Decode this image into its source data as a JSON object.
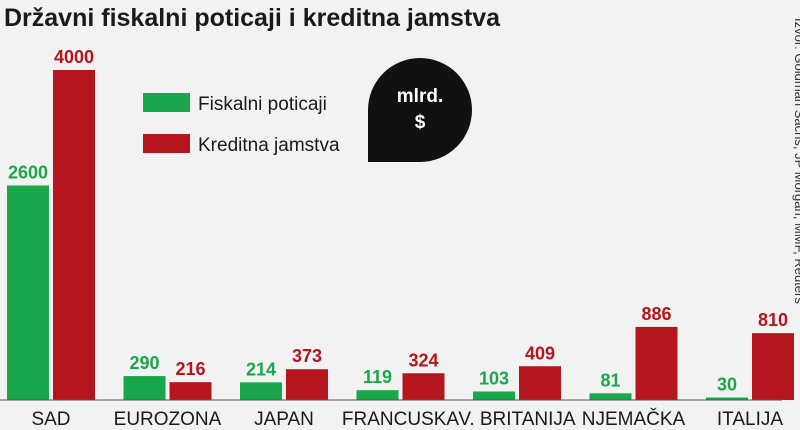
{
  "chart_data": {
    "type": "bar",
    "title": "Državni fiskalni poticaji i kreditna jamstva",
    "unit_line1": "mlrd.",
    "unit_line2": "$",
    "source": "Izvor: Goldman Sachs, JP Morgan, MMF, Reuters",
    "categories": [
      "SAD",
      "EUROZONA",
      "JAPAN",
      "FRANCUSKA",
      "V. BRITANIJA",
      "NJEMAČKA",
      "ITALIJA"
    ],
    "series": [
      {
        "name": "Fiskalni poticaji",
        "color": "#1aa64a",
        "values": [
          2600,
          290,
          214,
          119,
          103,
          81,
          30
        ]
      },
      {
        "name": "Kreditna jamstva",
        "color": "#b5151d",
        "values": [
          4000,
          216,
          373,
          324,
          409,
          886,
          810
        ]
      }
    ],
    "legend_position": "top-left",
    "grid": false
  }
}
